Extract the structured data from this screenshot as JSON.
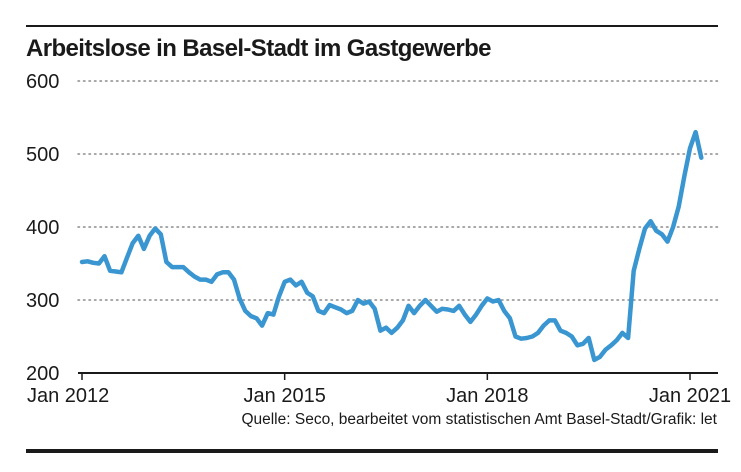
{
  "title": "Arbeitslose in Basel-Stadt im Gastgewerbe",
  "source": "Quelle: Seco, bearbeitet vom statistischen Amt Basel-Stadt/Grafik: let",
  "colors": {
    "line": "#3a96d0",
    "text": "#1a1a1a",
    "grid": "#8a8a8a"
  },
  "chart_data": {
    "type": "line",
    "title": "Arbeitslose in Basel-Stadt im Gastgewerbe",
    "xlabel": "",
    "ylabel": "",
    "ylim": [
      200,
      600
    ],
    "yticks": [
      200,
      300,
      400,
      500,
      600
    ],
    "ytick_labels": [
      "200",
      "300",
      "400",
      "500",
      "600"
    ],
    "xticks": [
      {
        "label": "Jan 2012",
        "month_index": 0
      },
      {
        "label": "Jan 2015",
        "month_index": 36
      },
      {
        "label": "Jan 2018",
        "month_index": 72
      },
      {
        "label": "Jan 2021",
        "month_index": 108
      }
    ],
    "grid": "horizontal dotted",
    "legend": "none",
    "x_start": "2012-01",
    "x_frequency": "monthly",
    "series": [
      {
        "values": [
          352,
          353,
          351,
          350,
          360,
          340,
          339,
          338,
          358,
          378,
          388,
          370,
          388,
          398,
          390,
          352,
          345,
          345,
          345,
          338,
          332,
          328,
          328,
          325,
          335,
          338,
          338,
          328,
          302,
          285,
          278,
          275,
          265,
          282,
          280,
          305,
          325,
          328,
          320,
          325,
          310,
          305,
          285,
          282,
          293,
          290,
          287,
          282,
          285,
          300,
          295,
          298,
          288,
          258,
          262,
          255,
          262,
          272,
          292,
          282,
          292,
          300,
          292,
          284,
          288,
          287,
          285,
          292,
          280,
          270,
          280,
          292,
          302,
          298,
          300,
          285,
          275,
          250,
          247,
          248,
          250,
          255,
          265,
          272,
          272,
          258,
          255,
          250,
          238,
          240,
          248,
          218,
          222,
          232,
          238,
          245,
          255,
          248,
          340,
          370,
          398,
          408,
          395,
          390,
          380,
          400,
          428,
          470,
          508,
          530,
          495
        ]
      }
    ]
  }
}
